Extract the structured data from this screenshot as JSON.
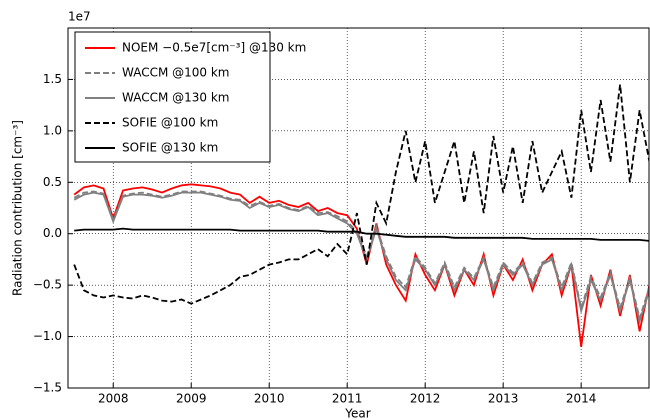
{
  "chart_data": {
    "type": "line",
    "ylabel": "Radiation contribution [cm⁻³]",
    "xlabel": "Year",
    "y_offset_label": "1e7",
    "x": [
      2007.5,
      2007.625,
      2007.75,
      2007.875,
      2008,
      2008.125,
      2008.25,
      2008.375,
      2008.5,
      2008.625,
      2008.75,
      2008.875,
      2009,
      2009.125,
      2009.25,
      2009.375,
      2009.5,
      2009.625,
      2009.75,
      2009.875,
      2010,
      2010.125,
      2010.25,
      2010.375,
      2010.5,
      2010.625,
      2010.75,
      2010.875,
      2011,
      2011.125,
      2011.25,
      2011.375,
      2011.5,
      2011.625,
      2011.75,
      2011.875,
      2012,
      2012.125,
      2012.25,
      2012.375,
      2012.5,
      2012.625,
      2012.75,
      2012.875,
      2013,
      2013.125,
      2013.25,
      2013.375,
      2013.5,
      2013.625,
      2013.75,
      2013.875,
      2014,
      2014.125,
      2014.25,
      2014.375,
      2014.5,
      2014.625,
      2014.75,
      2014.875
    ],
    "series": [
      {
        "name": "NOEM −0.5e7[cm⁻³] @130 km",
        "color": "#ff0000",
        "style": "solid",
        "values": [
          0.38,
          0.45,
          0.47,
          0.44,
          0.15,
          0.42,
          0.44,
          0.45,
          0.43,
          0.4,
          0.44,
          0.47,
          0.48,
          0.47,
          0.46,
          0.44,
          0.4,
          0.38,
          0.3,
          0.36,
          0.3,
          0.32,
          0.28,
          0.26,
          0.3,
          0.22,
          0.25,
          0.2,
          0.18,
          0.05,
          -0.3,
          0.1,
          -0.3,
          -0.5,
          -0.65,
          -0.2,
          -0.4,
          -0.55,
          -0.3,
          -0.6,
          -0.35,
          -0.5,
          -0.2,
          -0.6,
          -0.3,
          -0.45,
          -0.25,
          -0.55,
          -0.3,
          -0.2,
          -0.6,
          -0.3,
          -1.1,
          -0.4,
          -0.7,
          -0.35,
          -0.8,
          -0.4,
          -0.95,
          -0.5
        ]
      },
      {
        "name": "WACCM @100 km",
        "color": "#808080",
        "style": "dashed",
        "values": [
          0.35,
          0.4,
          0.41,
          0.39,
          0.14,
          0.37,
          0.39,
          0.4,
          0.38,
          0.36,
          0.38,
          0.41,
          0.41,
          0.41,
          0.39,
          0.37,
          0.34,
          0.33,
          0.27,
          0.31,
          0.27,
          0.29,
          0.25,
          0.23,
          0.27,
          0.2,
          0.21,
          0.17,
          0.12,
          0.02,
          -0.22,
          0.07,
          -0.22,
          -0.42,
          -0.52,
          -0.22,
          -0.33,
          -0.48,
          -0.28,
          -0.52,
          -0.33,
          -0.43,
          -0.23,
          -0.52,
          -0.28,
          -0.38,
          -0.28,
          -0.48,
          -0.28,
          -0.23,
          -0.52,
          -0.28,
          -0.72,
          -0.42,
          -0.62,
          -0.38,
          -0.72,
          -0.43,
          -0.82,
          -0.52
        ]
      },
      {
        "name": "WACCM @130 km",
        "color": "#808080",
        "style": "solid",
        "values": [
          0.33,
          0.38,
          0.4,
          0.38,
          0.12,
          0.36,
          0.38,
          0.38,
          0.37,
          0.35,
          0.37,
          0.4,
          0.4,
          0.4,
          0.38,
          0.36,
          0.33,
          0.32,
          0.25,
          0.3,
          0.26,
          0.28,
          0.24,
          0.22,
          0.26,
          0.18,
          0.2,
          0.15,
          0.1,
          0.0,
          -0.25,
          0.05,
          -0.25,
          -0.45,
          -0.55,
          -0.25,
          -0.35,
          -0.5,
          -0.3,
          -0.55,
          -0.35,
          -0.45,
          -0.25,
          -0.55,
          -0.3,
          -0.4,
          -0.3,
          -0.5,
          -0.3,
          -0.25,
          -0.55,
          -0.3,
          -0.75,
          -0.45,
          -0.65,
          -0.4,
          -0.75,
          -0.45,
          -0.85,
          -0.55
        ]
      },
      {
        "name": "SOFIE @100 km",
        "color": "#000000",
        "style": "dashed",
        "values": [
          -0.3,
          -0.55,
          -0.6,
          -0.62,
          -0.6,
          -0.62,
          -0.63,
          -0.6,
          -0.62,
          -0.65,
          -0.66,
          -0.64,
          -0.68,
          -0.64,
          -0.6,
          -0.55,
          -0.5,
          -0.42,
          -0.4,
          -0.35,
          -0.3,
          -0.28,
          -0.25,
          -0.25,
          -0.2,
          -0.15,
          -0.22,
          -0.1,
          -0.2,
          0.2,
          -0.3,
          0.3,
          0.1,
          0.6,
          1.0,
          0.5,
          0.9,
          0.3,
          0.6,
          0.9,
          0.3,
          0.8,
          0.2,
          0.95,
          0.4,
          0.85,
          0.3,
          0.9,
          0.4,
          0.6,
          0.8,
          0.35,
          1.2,
          0.6,
          1.3,
          0.7,
          1.45,
          0.5,
          1.2,
          0.7
        ]
      },
      {
        "name": "SOFIE @130 km",
        "color": "#000000",
        "style": "solid",
        "values": [
          0.03,
          0.04,
          0.04,
          0.04,
          0.04,
          0.05,
          0.04,
          0.04,
          0.04,
          0.04,
          0.04,
          0.04,
          0.04,
          0.04,
          0.04,
          0.04,
          0.04,
          0.03,
          0.03,
          0.03,
          0.03,
          0.03,
          0.03,
          0.03,
          0.03,
          0.03,
          0.02,
          0.02,
          0.02,
          0.02,
          0.0,
          0.0,
          -0.01,
          -0.02,
          -0.03,
          -0.03,
          -0.03,
          -0.03,
          -0.03,
          -0.04,
          -0.04,
          -0.04,
          -0.04,
          -0.04,
          -0.04,
          -0.04,
          -0.04,
          -0.05,
          -0.05,
          -0.05,
          -0.05,
          -0.05,
          -0.05,
          -0.05,
          -0.06,
          -0.06,
          -0.06,
          -0.06,
          -0.06,
          -0.07
        ]
      }
    ],
    "xlim": [
      2007.42,
      2014.87
    ],
    "xticks": [
      2008,
      2009,
      2010,
      2011,
      2012,
      2013,
      2014
    ],
    "ylim": [
      -1.5,
      2.0
    ],
    "yticks": [
      {
        "value": -1.5,
        "label": "−1.5"
      },
      {
        "value": -1.0,
        "label": "−1.0"
      },
      {
        "value": -0.5,
        "label": "−0.5"
      },
      {
        "value": 0,
        "label": "0.0"
      },
      0.5,
      {
        "value": 1.0,
        "label": "1.0"
      },
      1.5
    ],
    "grid": true,
    "legend": "upper-left"
  }
}
